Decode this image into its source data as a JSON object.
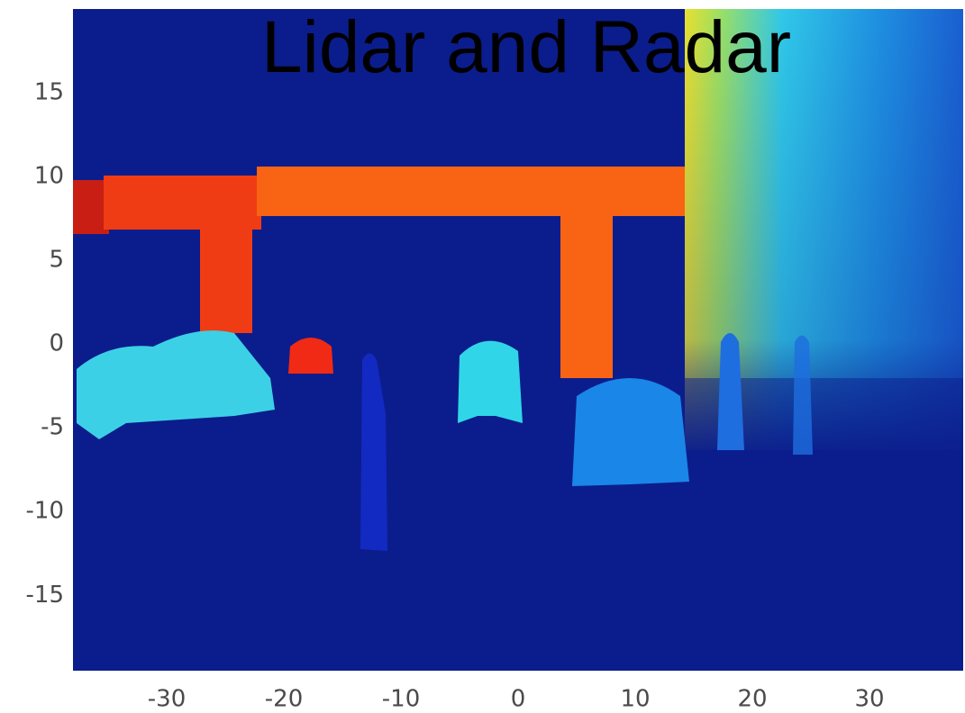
{
  "chart_data": {
    "type": "image",
    "title": "Lidar and Radar",
    "xlim": [
      -38,
      38
    ],
    "xticks": [
      -30,
      -20,
      -10,
      0,
      10,
      20,
      30
    ],
    "ylim": [
      -19.5,
      20
    ],
    "yticks": [
      -15,
      -10,
      -5,
      0,
      5,
      10,
      15
    ]
  }
}
